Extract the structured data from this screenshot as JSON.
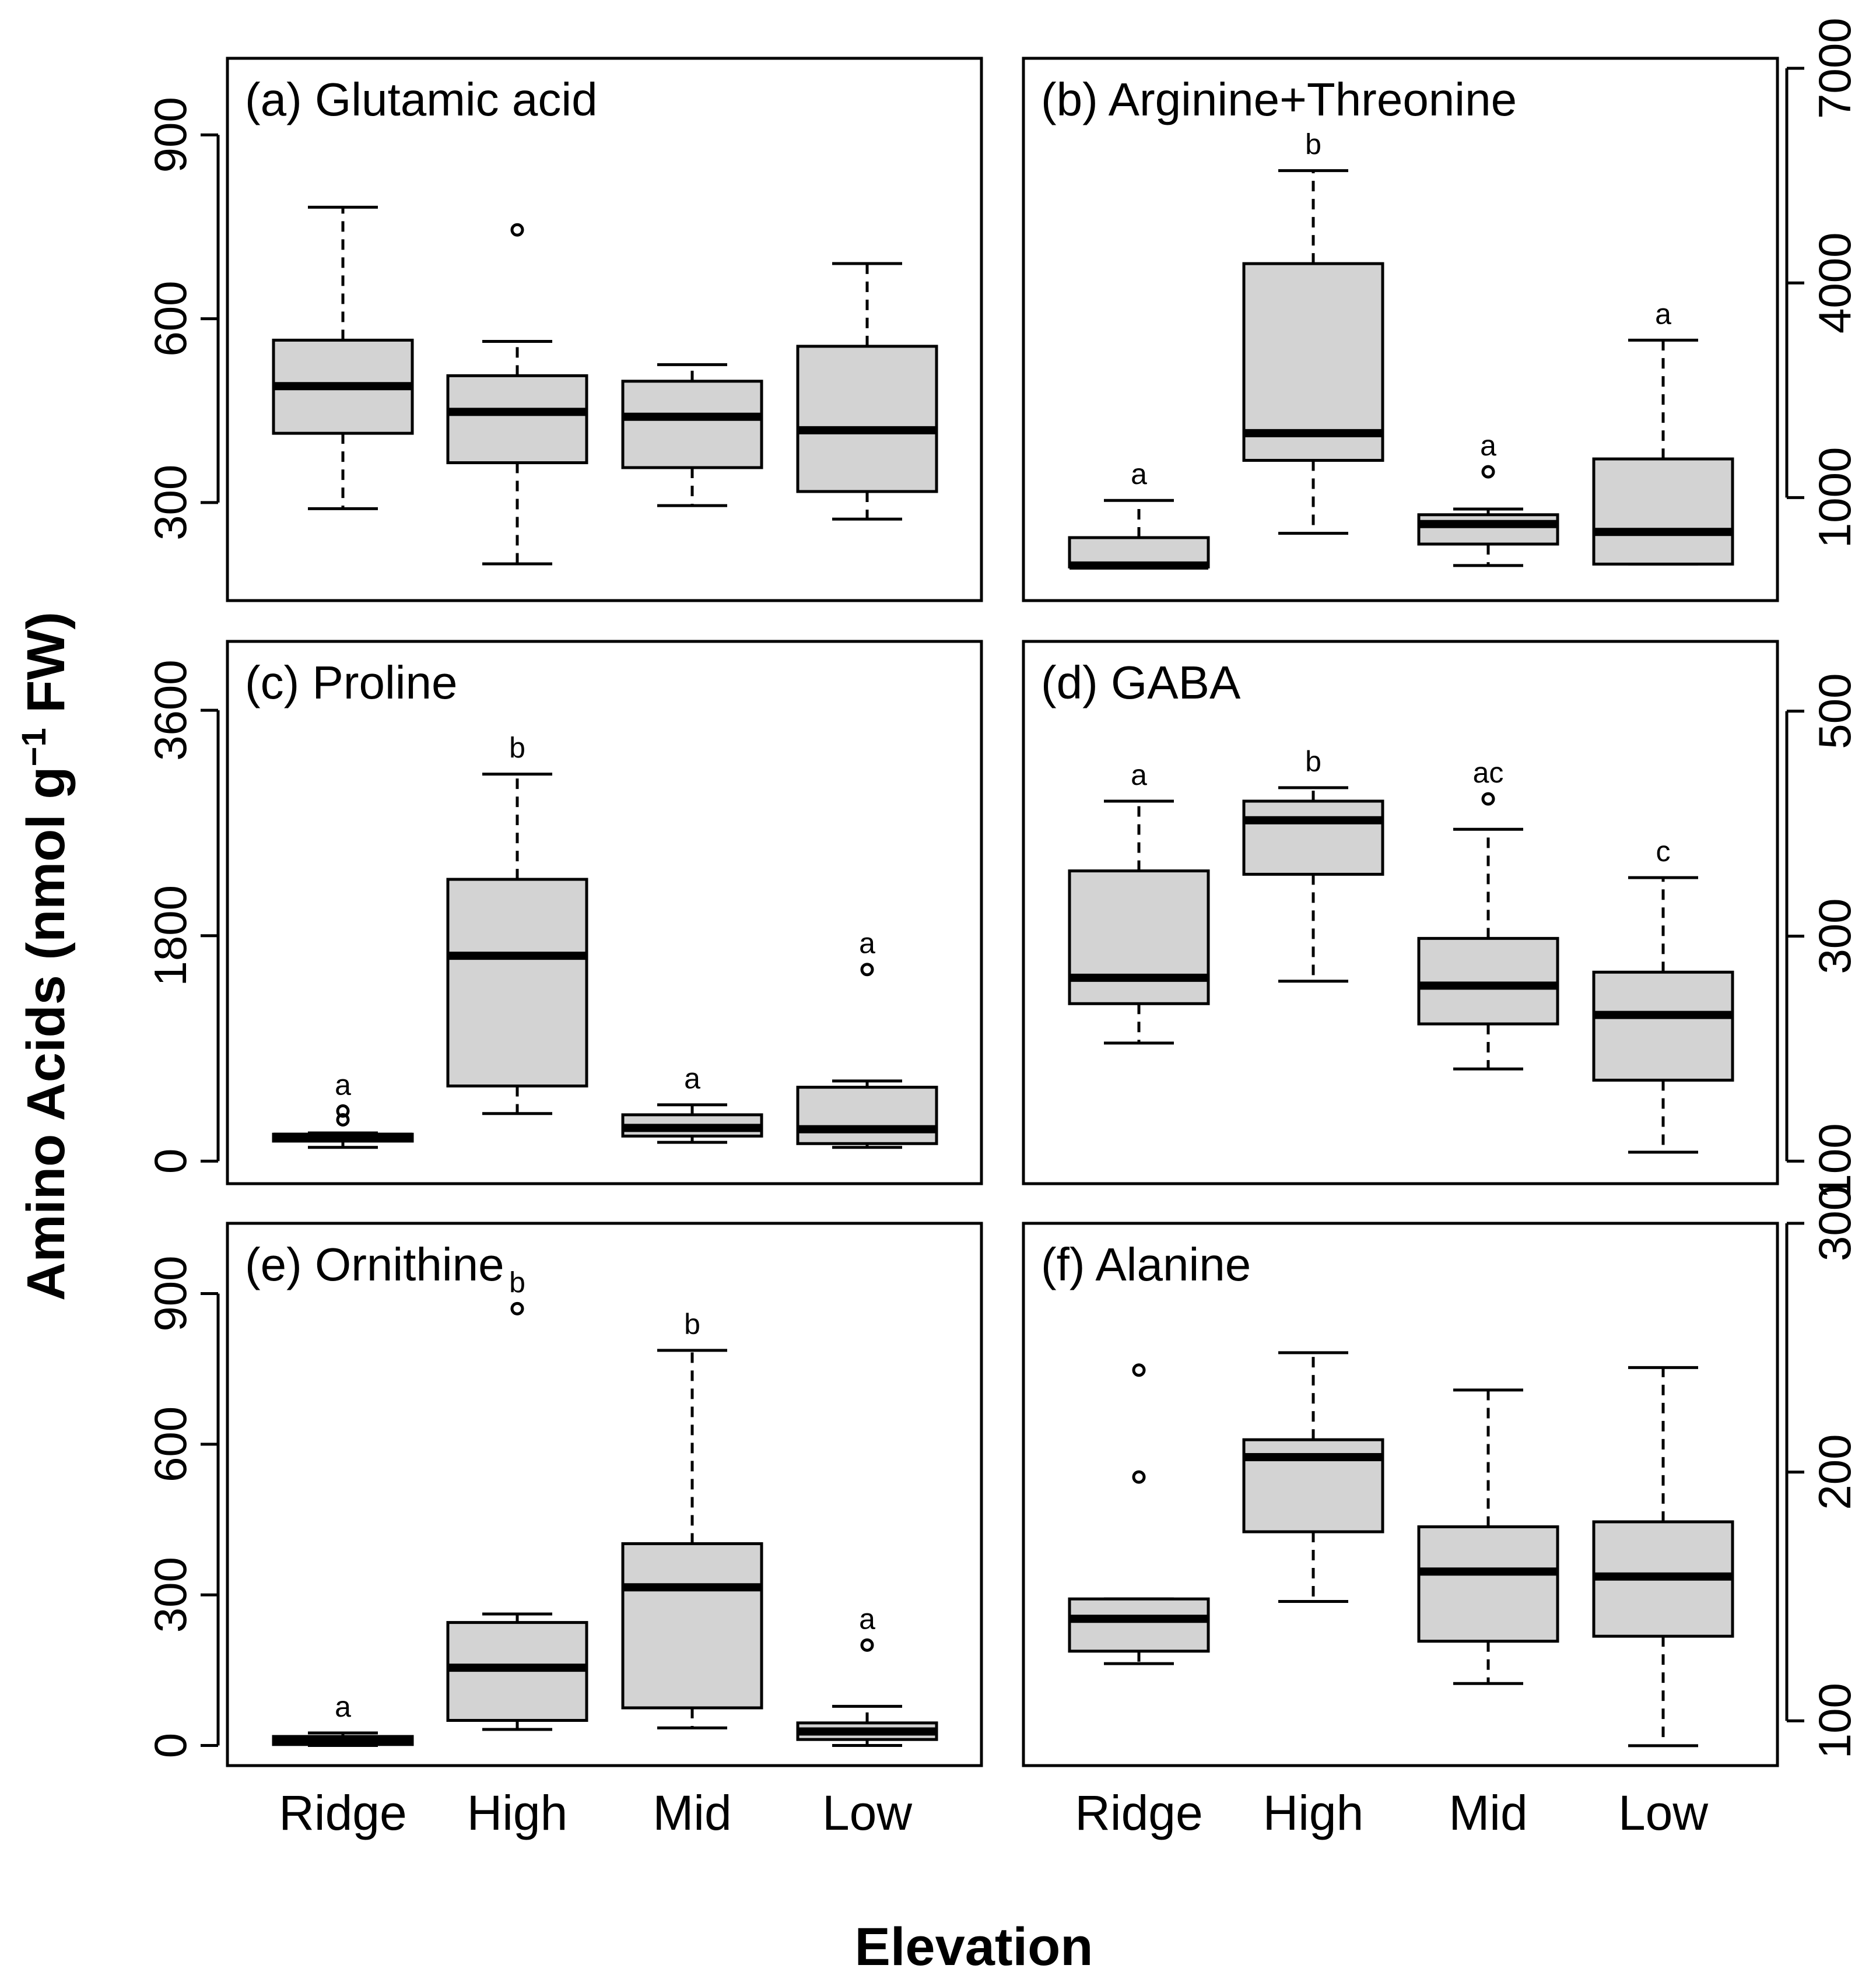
{
  "figure": {
    "ylabel_main": "Amino Acids (nmol g",
    "ylabel_sup": "−1",
    "ylabel_tail": " FW)",
    "xlabel": "Elevation"
  },
  "chart_data": [
    {
      "type": "box",
      "title": "(a) Glutamic acid",
      "categories": [
        "Ridge",
        "High",
        "Mid",
        "Low"
      ],
      "yaxis_side": "left",
      "yticks": [
        300,
        600,
        900
      ],
      "ylim": [
        140,
        1025
      ],
      "boxes": [
        {
          "category": "Ridge",
          "whisker_low": 290,
          "q1": 413,
          "median": 490,
          "q3": 565,
          "whisker_high": 782,
          "outliers": [],
          "letter": ""
        },
        {
          "category": "High",
          "whisker_low": 200,
          "q1": 365,
          "median": 448,
          "q3": 507,
          "whisker_high": 563,
          "outliers": [
            745
          ],
          "letter": ""
        },
        {
          "category": "Mid",
          "whisker_low": 295,
          "q1": 357,
          "median": 440,
          "q3": 498,
          "whisker_high": 525,
          "outliers": [],
          "letter": ""
        },
        {
          "category": "Low",
          "whisker_low": 273,
          "q1": 318,
          "median": 418,
          "q3": 555,
          "whisker_high": 690,
          "outliers": [],
          "letter": ""
        }
      ]
    },
    {
      "type": "box",
      "title": "(b) Arginine+Threonine",
      "categories": [
        "Ridge",
        "High",
        "Mid",
        "Low"
      ],
      "yaxis_side": "right",
      "yticks": [
        1000,
        4000,
        7000
      ],
      "ylim": [
        -440,
        7140
      ],
      "boxes": [
        {
          "category": "Ridge",
          "whisker_low": 30,
          "q1": 30,
          "median": 50,
          "q3": 440,
          "whisker_high": 960,
          "outliers": [],
          "letter": "a"
        },
        {
          "category": "High",
          "whisker_low": 500,
          "q1": 1520,
          "median": 1900,
          "q3": 4270,
          "whisker_high": 5570,
          "outliers": [],
          "letter": "b"
        },
        {
          "category": "Mid",
          "whisker_low": 50,
          "q1": 350,
          "median": 630,
          "q3": 760,
          "whisker_high": 840,
          "outliers": [
            1360
          ],
          "letter": "a"
        },
        {
          "category": "Low",
          "whisker_low": 70,
          "q1": 70,
          "median": 520,
          "q3": 1540,
          "whisker_high": 3200,
          "outliers": [],
          "letter": "a"
        }
      ]
    },
    {
      "type": "box",
      "title": "(c) Proline",
      "categories": [
        "Ridge",
        "High",
        "Mid",
        "Low"
      ],
      "yaxis_side": "left",
      "yticks": [
        0,
        1800,
        3600
      ],
      "ylim": [
        -180,
        4150
      ],
      "boxes": [
        {
          "category": "Ridge",
          "whisker_low": 110,
          "q1": 160,
          "median": 195,
          "q3": 215,
          "whisker_high": 225,
          "outliers": [
            330,
            400
          ],
          "letter": "a"
        },
        {
          "category": "High",
          "whisker_low": 380,
          "q1": 600,
          "median": 1640,
          "q3": 2250,
          "whisker_high": 3090,
          "outliers": [],
          "letter": "b"
        },
        {
          "category": "Mid",
          "whisker_low": 150,
          "q1": 200,
          "median": 265,
          "q3": 370,
          "whisker_high": 450,
          "outliers": [],
          "letter": "a"
        },
        {
          "category": "Low",
          "whisker_low": 110,
          "q1": 140,
          "median": 255,
          "q3": 590,
          "whisker_high": 640,
          "outliers": [
            1530
          ],
          "letter": "a"
        }
      ]
    },
    {
      "type": "box",
      "title": "(d) GABA",
      "categories": [
        "Ridge",
        "High",
        "Mid",
        "Low"
      ],
      "yaxis_side": "right",
      "yticks": [
        100,
        300,
        500
      ],
      "ylim": [
        80,
        562
      ],
      "boxes": [
        {
          "category": "Ridge",
          "whisker_low": 205,
          "q1": 240,
          "median": 263,
          "q3": 358,
          "whisker_high": 420,
          "outliers": [],
          "letter": "a"
        },
        {
          "category": "High",
          "whisker_low": 260,
          "q1": 355,
          "median": 403,
          "q3": 420,
          "whisker_high": 432,
          "outliers": [],
          "letter": "b"
        },
        {
          "category": "Mid",
          "whisker_low": 182,
          "q1": 222,
          "median": 256,
          "q3": 298,
          "whisker_high": 395,
          "outliers": [
            422
          ],
          "letter": "ac"
        },
        {
          "category": "Low",
          "whisker_low": 108,
          "q1": 172,
          "median": 230,
          "q3": 268,
          "whisker_high": 352,
          "outliers": [],
          "letter": "c"
        }
      ]
    },
    {
      "type": "box",
      "title": "(e) Ornithine",
      "categories": [
        "Ridge",
        "High",
        "Mid",
        "Low"
      ],
      "yaxis_side": "left",
      "yticks": [
        0,
        300,
        600,
        900
      ],
      "ylim": [
        -40,
        1040
      ],
      "boxes": [
        {
          "category": "Ridge",
          "whisker_low": 0,
          "q1": 2,
          "median": 8,
          "q3": 18,
          "whisker_high": 25,
          "outliers": [],
          "letter": "a"
        },
        {
          "category": "High",
          "whisker_low": 32,
          "q1": 50,
          "median": 155,
          "q3": 245,
          "whisker_high": 262,
          "outliers": [
            870
          ],
          "letter": "b"
        },
        {
          "category": "Mid",
          "whisker_low": 35,
          "q1": 75,
          "median": 315,
          "q3": 402,
          "whisker_high": 787,
          "outliers": [],
          "letter": "b"
        },
        {
          "category": "Low",
          "whisker_low": 0,
          "q1": 12,
          "median": 28,
          "q3": 45,
          "whisker_high": 78,
          "outliers": [
            200
          ],
          "letter": "a"
        }
      ]
    },
    {
      "type": "box",
      "title": "(f) Alanine",
      "categories": [
        "Ridge",
        "High",
        "Mid",
        "Low"
      ],
      "yaxis_side": "right",
      "yticks": [
        100,
        200,
        300
      ],
      "ylim": [
        82,
        300
      ],
      "boxes": [
        {
          "category": "Ridge",
          "whisker_low": 123,
          "q1": 128,
          "median": 141,
          "q3": 149,
          "whisker_high": 149,
          "outliers": [
            198,
            241
          ],
          "letter": ""
        },
        {
          "category": "High",
          "whisker_low": 148,
          "q1": 176,
          "median": 206,
          "q3": 213,
          "whisker_high": 248,
          "outliers": [],
          "letter": ""
        },
        {
          "category": "Mid",
          "whisker_low": 115,
          "q1": 132,
          "median": 160,
          "q3": 178,
          "whisker_high": 233,
          "outliers": [],
          "letter": ""
        },
        {
          "category": "Low",
          "whisker_low": 90,
          "q1": 134,
          "median": 158,
          "q3": 180,
          "whisker_high": 242,
          "outliers": [],
          "letter": ""
        }
      ]
    }
  ]
}
